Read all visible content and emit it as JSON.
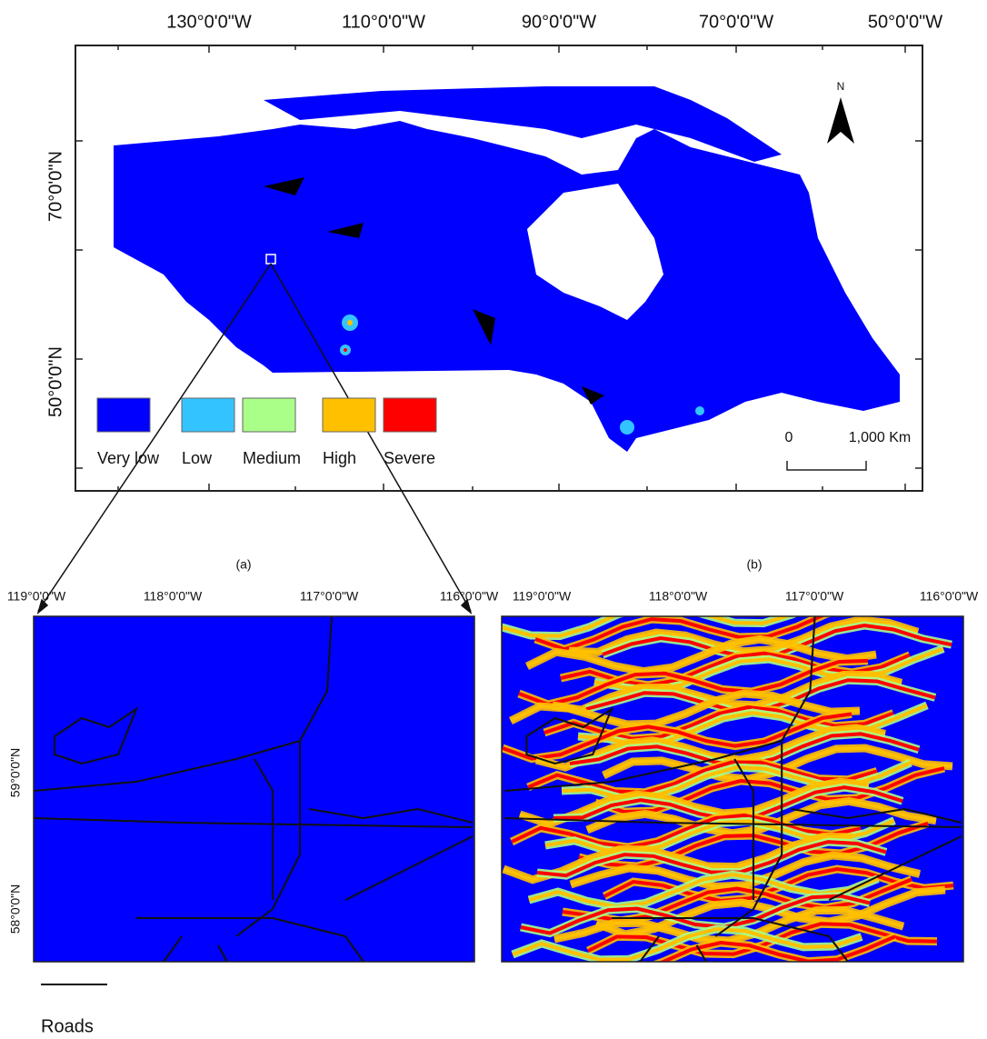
{
  "top_map": {
    "lon_labels": [
      "130°0'0\"W",
      "110°0'0\"W",
      "90°0'0\"W",
      "70°0'0\"W",
      "50°0'0\"W"
    ],
    "lat_labels": [
      "70°0'0\"N",
      "50°0'0\"N"
    ],
    "north": "N",
    "scale": [
      "0",
      "1,000 Km"
    ],
    "legend": [
      {
        "name": "Very low",
        "color": "#0000ff"
      },
      {
        "name": "Low",
        "color": "#33c4ff"
      },
      {
        "name": "Medium",
        "color": "#aaff88"
      },
      {
        "name": "High",
        "color": "#ffc000"
      },
      {
        "name": "Severe",
        "color": "#ff0000"
      }
    ]
  },
  "panel_labels": [
    "(a)",
    "(b)"
  ],
  "panel_a": {
    "lon_labels": [
      "119°0'0\"W",
      "118°0'0\"W",
      "117°0'0\"W",
      "116°0'0\"W"
    ],
    "lat_labels": [
      "59°0'0\"N",
      "58°0'0\"N"
    ]
  },
  "panel_b": {
    "lon_labels": [
      "119°0'0\"W",
      "118°0'0\"W",
      "117°0'0\"W",
      "116°0'0\"W"
    ]
  },
  "roads_legend": "Roads"
}
